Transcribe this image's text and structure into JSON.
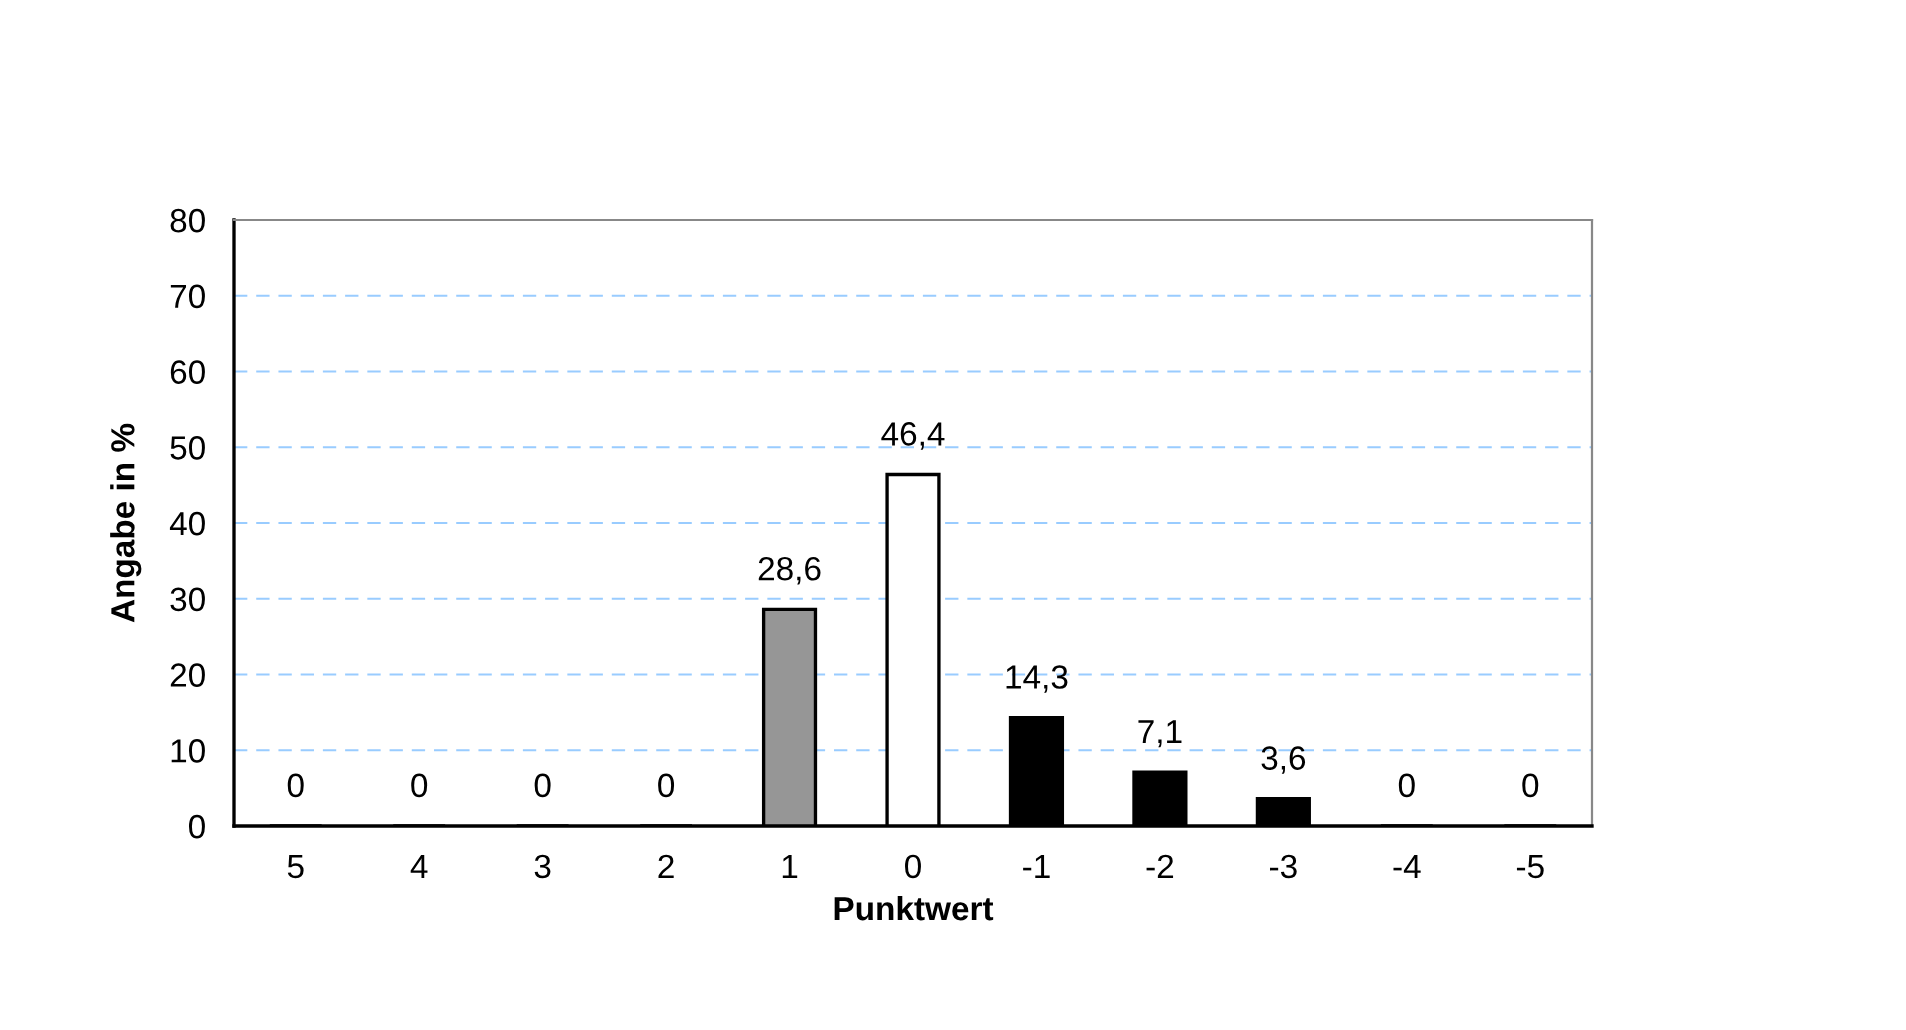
{
  "chart_data": {
    "type": "bar",
    "xlabel": "Punktwert",
    "ylabel": "Angabe in %",
    "categories": [
      "5",
      "4",
      "3",
      "2",
      "1",
      "0",
      "-1",
      "-2",
      "-3",
      "-4",
      "-5"
    ],
    "values": [
      0,
      0,
      0,
      0,
      28.6,
      46.4,
      14.3,
      7.1,
      3.6,
      0,
      0
    ],
    "colors": [
      "#000000",
      "#000000",
      "#000000",
      "#000000",
      "#969696",
      "#ffffff",
      "#000000",
      "#000000",
      "#000000",
      "#000000",
      "#000000"
    ],
    "value_labels": [
      "0",
      "0",
      "0",
      "0",
      "28,6",
      "46,4",
      "14,3",
      "7,1",
      "3,6",
      "0",
      "0"
    ],
    "ylim": [
      0,
      80
    ],
    "yticks": [
      0,
      10,
      20,
      30,
      40,
      50,
      60,
      70,
      80
    ],
    "grid": "y"
  }
}
